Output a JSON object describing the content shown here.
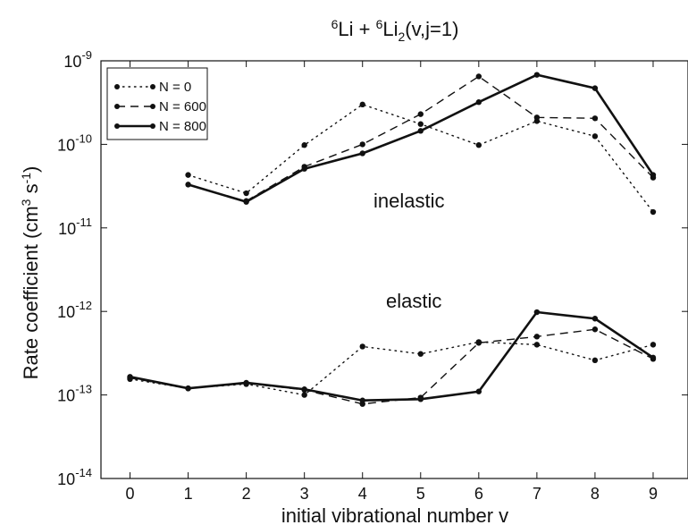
{
  "chart_data": {
    "type": "line",
    "title_parts": {
      "sup1": "6",
      "a": "Li + ",
      "sup2": "6",
      "b": "Li",
      "sub": "2",
      "c": "(v,j=1)"
    },
    "xlabel": "initial vibrational number v",
    "ylabel_parts": {
      "a": "Rate coefficient (cm",
      "sup1": "3",
      "b": " s",
      "sup2": "-1",
      "c": ")"
    },
    "x_ticks": [
      0,
      1,
      2,
      3,
      4,
      5,
      6,
      7,
      8,
      9
    ],
    "y_ticks": [
      {
        "mant": "10",
        "exp": "-14",
        "value": 1e-14
      },
      {
        "mant": "10",
        "exp": "-13",
        "value": 1e-13
      },
      {
        "mant": "10",
        "exp": "-12",
        "value": 1e-12
      },
      {
        "mant": "10",
        "exp": "-11",
        "value": 1e-11
      },
      {
        "mant": "10",
        "exp": "-10",
        "value": 1e-10
      },
      {
        "mant": "10",
        "exp": "-9",
        "value": 1e-09
      }
    ],
    "xlim": [
      -0.5,
      9.6
    ],
    "ylim": [
      1e-14,
      1e-09
    ],
    "yscale": "log",
    "grid": false,
    "legend_position": "top-left",
    "annotations": {
      "inelastic": "inelastic",
      "elastic": "elastic"
    },
    "series": [
      {
        "name": "N = 0",
        "style": "dotted",
        "group": "inelastic",
        "x": [
          1,
          2,
          3,
          4,
          5,
          6,
          7,
          8,
          9
        ],
        "y": [
          4.3e-11,
          2.6e-11,
          9.8e-11,
          3e-10,
          1.75e-10,
          9.8e-11,
          1.9e-10,
          1.25e-10,
          1.55e-11
        ]
      },
      {
        "name": "N = 600",
        "style": "dashed",
        "group": "inelastic",
        "x": [
          2,
          3,
          4,
          5,
          6,
          7,
          8,
          9
        ],
        "y": [
          2.1e-11,
          5.4e-11,
          1e-10,
          2.3e-10,
          6.5e-10,
          2.1e-10,
          2.05e-10,
          4e-11
        ]
      },
      {
        "name": "N = 800",
        "style": "solid",
        "group": "inelastic",
        "x": [
          1,
          2,
          3,
          4,
          5,
          6,
          7,
          8,
          9
        ],
        "y": [
          3.3e-11,
          2.05e-11,
          5.1e-11,
          7.8e-11,
          1.45e-10,
          3.2e-10,
          6.8e-10,
          4.7e-10,
          4.3e-11
        ]
      },
      {
        "name": "N = 0",
        "style": "dotted",
        "group": "elastic",
        "x": [
          0,
          1,
          2,
          3,
          4,
          5,
          6,
          7,
          8,
          9
        ],
        "y": [
          1.55e-13,
          1.2e-13,
          1.35e-13,
          1e-13,
          3.8e-13,
          3.1e-13,
          4.3e-13,
          4e-13,
          2.6e-13,
          4e-13
        ]
      },
      {
        "name": "N = 600",
        "style": "dashed",
        "group": "elastic",
        "x": [
          0,
          1,
          2,
          3,
          4,
          5,
          6,
          7,
          8,
          9
        ],
        "y": [
          1.6e-13,
          1.2e-13,
          1.38e-13,
          1.15e-13,
          7.8e-14,
          9.3e-14,
          4.2e-13,
          5e-13,
          6.1e-13,
          2.7e-13
        ]
      },
      {
        "name": "N = 800",
        "style": "solid",
        "group": "elastic",
        "x": [
          0,
          1,
          2,
          3,
          4,
          5,
          6,
          7,
          8,
          9
        ],
        "y": [
          1.65e-13,
          1.2e-13,
          1.4e-13,
          1.17e-13,
          8.6e-14,
          8.9e-14,
          1.1e-13,
          9.8e-13,
          8.2e-13,
          2.8e-13
        ]
      }
    ],
    "legend": [
      {
        "label": "N = 0",
        "style": "dotted"
      },
      {
        "label": "N = 600",
        "style": "dashed"
      },
      {
        "label": "N = 800",
        "style": "solid"
      }
    ]
  }
}
